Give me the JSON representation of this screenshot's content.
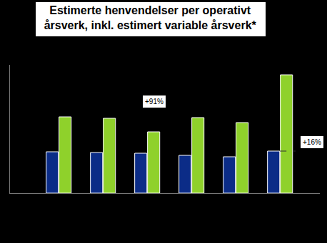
{
  "chart_data": {
    "type": "bar",
    "title": "Estimerte henvendelser per operativt\nårsverk, inkl. estimert variable årsverk*",
    "categories": [
      null,
      null,
      null,
      null,
      null,
      null
    ],
    "series": [
      {
        "color": "#0b2c87",
        "values": [
          58,
          57,
          56,
          53,
          51,
          59
        ]
      },
      {
        "color": "#8fd12b",
        "values": [
          107,
          105,
          86,
          106,
          99,
          166
        ]
      }
    ],
    "ylim": [
      0,
      180
    ],
    "yticks": [],
    "grid": false,
    "tick_labels": false,
    "annotations": [
      "+91%",
      "+16%"
    ]
  }
}
